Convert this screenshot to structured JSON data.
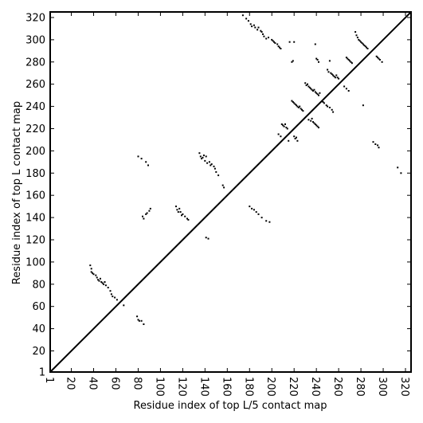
{
  "chart_data": {
    "type": "scatter",
    "title": "",
    "xlabel": "Residue index of top L/5 contact map",
    "ylabel": "Residue index of top L contact map",
    "xlim": [
      1,
      325
    ],
    "ylim": [
      1,
      325
    ],
    "xticks": [
      1,
      20,
      40,
      60,
      80,
      100,
      120,
      140,
      160,
      180,
      200,
      220,
      240,
      260,
      280,
      300,
      320
    ],
    "yticks": [
      1,
      20,
      40,
      60,
      80,
      100,
      120,
      140,
      160,
      180,
      200,
      220,
      240,
      260,
      280,
      300,
      320
    ],
    "grid": false,
    "legend": "none",
    "colors": {
      "points": "#000000",
      "diagonal": "#000000",
      "frame": "#000000",
      "background": "#ffffff"
    },
    "diagonal": {
      "from": [
        1,
        1
      ],
      "to": [
        325,
        325
      ]
    },
    "series": [
      {
        "region": "upper-left",
        "points": [
          [
            37,
            97
          ],
          [
            38,
            94
          ],
          [
            38,
            91
          ],
          [
            39,
            90
          ],
          [
            40,
            89
          ],
          [
            42,
            88
          ],
          [
            43,
            86
          ],
          [
            44,
            84
          ],
          [
            45,
            83
          ],
          [
            46,
            85
          ],
          [
            47,
            82
          ],
          [
            48,
            81
          ],
          [
            49,
            80
          ],
          [
            50,
            82
          ],
          [
            51,
            79
          ],
          [
            53,
            77
          ],
          [
            55,
            74
          ],
          [
            56,
            71
          ],
          [
            57,
            69
          ],
          [
            59,
            68
          ],
          [
            61,
            66
          ],
          [
            67,
            61
          ],
          [
            79,
            51
          ],
          [
            80,
            48
          ],
          [
            81,
            47
          ],
          [
            83,
            47
          ],
          [
            85,
            44
          ],
          [
            80,
            195
          ],
          [
            83,
            193
          ],
          [
            87,
            190
          ],
          [
            89,
            187
          ],
          [
            84,
            141
          ],
          [
            85,
            139
          ],
          [
            87,
            143
          ],
          [
            88,
            144
          ],
          [
            90,
            146
          ],
          [
            91,
            148
          ],
          [
            114,
            150
          ],
          [
            115,
            147
          ],
          [
            116,
            145
          ],
          [
            117,
            148
          ],
          [
            118,
            145
          ],
          [
            119,
            142
          ],
          [
            120,
            143
          ],
          [
            122,
            141
          ],
          [
            124,
            139
          ],
          [
            125,
            138
          ],
          [
            135,
            198
          ],
          [
            136,
            195
          ],
          [
            137,
            193
          ],
          [
            138,
            194
          ],
          [
            139,
            196
          ],
          [
            140,
            191
          ],
          [
            141,
            195
          ],
          [
            142,
            189
          ],
          [
            144,
            190
          ],
          [
            145,
            187
          ],
          [
            146,
            188
          ],
          [
            148,
            186
          ],
          [
            149,
            184
          ],
          [
            150,
            181
          ],
          [
            152,
            178
          ],
          [
            156,
            169
          ],
          [
            157,
            167
          ],
          [
            141,
            122
          ],
          [
            143,
            121
          ],
          [
            174,
            322
          ],
          [
            177,
            319
          ],
          [
            179,
            317
          ],
          [
            181,
            314
          ],
          [
            182,
            312
          ],
          [
            184,
            313
          ],
          [
            185,
            311
          ],
          [
            187,
            309
          ],
          [
            188,
            311
          ],
          [
            190,
            308
          ],
          [
            191,
            307
          ],
          [
            192,
            305
          ],
          [
            193,
            303
          ],
          [
            195,
            301
          ],
          [
            197,
            302
          ],
          [
            200,
            300
          ],
          [
            201,
            299
          ],
          [
            202,
            298
          ],
          [
            203,
            297
          ],
          [
            205,
            296
          ],
          [
            206,
            294
          ],
          [
            207,
            293
          ],
          [
            208,
            292
          ],
          [
            180,
            150
          ],
          [
            182,
            148
          ],
          [
            184,
            147
          ],
          [
            186,
            145
          ],
          [
            188,
            143
          ],
          [
            191,
            140
          ],
          [
            195,
            137
          ],
          [
            198,
            136
          ],
          [
            206,
            215
          ],
          [
            208,
            213
          ],
          [
            209,
            224
          ],
          [
            210,
            223
          ],
          [
            211,
            222
          ],
          [
            212,
            224
          ],
          [
            213,
            221
          ],
          [
            214,
            220
          ],
          [
            215,
            209
          ],
          [
            216,
            298
          ],
          [
            220,
            213
          ],
          [
            221,
            211
          ],
          [
            222,
            212
          ],
          [
            223,
            209
          ],
          [
            218,
            245
          ],
          [
            219,
            244
          ],
          [
            220,
            243
          ],
          [
            221,
            242
          ],
          [
            222,
            241
          ],
          [
            223,
            240
          ],
          [
            224,
            239
          ],
          [
            225,
            240
          ],
          [
            226,
            238
          ],
          [
            227,
            237
          ],
          [
            228,
            236
          ],
          [
            218,
            280
          ],
          [
            219,
            281
          ],
          [
            220,
            298
          ],
          [
            230,
            261
          ],
          [
            231,
            259
          ],
          [
            232,
            260
          ],
          [
            233,
            258
          ],
          [
            234,
            257
          ],
          [
            235,
            256
          ],
          [
            236,
            255
          ],
          [
            237,
            254
          ],
          [
            238,
            255
          ],
          [
            239,
            253
          ],
          [
            240,
            252
          ],
          [
            241,
            251
          ],
          [
            242,
            250
          ],
          [
            243,
            252
          ],
          [
            233,
            228
          ],
          [
            235,
            227
          ],
          [
            236,
            229
          ],
          [
            237,
            226
          ],
          [
            238,
            225
          ],
          [
            239,
            224
          ],
          [
            240,
            223
          ],
          [
            241,
            222
          ],
          [
            242,
            221
          ],
          [
            239,
            296
          ],
          [
            240,
            283
          ],
          [
            241,
            282
          ],
          [
            242,
            280
          ],
          [
            246,
            244
          ],
          [
            247,
            243
          ],
          [
            249,
            241
          ],
          [
            250,
            240
          ],
          [
            252,
            239
          ],
          [
            254,
            237
          ],
          [
            255,
            235
          ],
          [
            250,
            273
          ],
          [
            251,
            271
          ],
          [
            252,
            281
          ],
          [
            253,
            270
          ],
          [
            254,
            269
          ],
          [
            255,
            268
          ],
          [
            256,
            267
          ],
          [
            257,
            266
          ],
          [
            258,
            268
          ],
          [
            259,
            266
          ],
          [
            260,
            265
          ],
          [
            265,
            258
          ],
          [
            267,
            256
          ],
          [
            269,
            254
          ],
          [
            267,
            284
          ],
          [
            268,
            283
          ],
          [
            269,
            282
          ],
          [
            270,
            281
          ],
          [
            271,
            280
          ],
          [
            272,
            279
          ],
          [
            275,
            307
          ],
          [
            276,
            304
          ],
          [
            277,
            302
          ],
          [
            278,
            300
          ],
          [
            279,
            299
          ],
          [
            280,
            298
          ],
          [
            281,
            297
          ],
          [
            282,
            296
          ],
          [
            283,
            295
          ],
          [
            284,
            294
          ],
          [
            285,
            293
          ],
          [
            286,
            292
          ],
          [
            282,
            241
          ],
          [
            291,
            208
          ],
          [
            293,
            206
          ],
          [
            295,
            205
          ],
          [
            296,
            203
          ],
          [
            294,
            285
          ],
          [
            295,
            284
          ],
          [
            296,
            283
          ],
          [
            297,
            282
          ],
          [
            299,
            280
          ],
          [
            313,
            185
          ],
          [
            316,
            180
          ]
        ]
      }
    ]
  }
}
